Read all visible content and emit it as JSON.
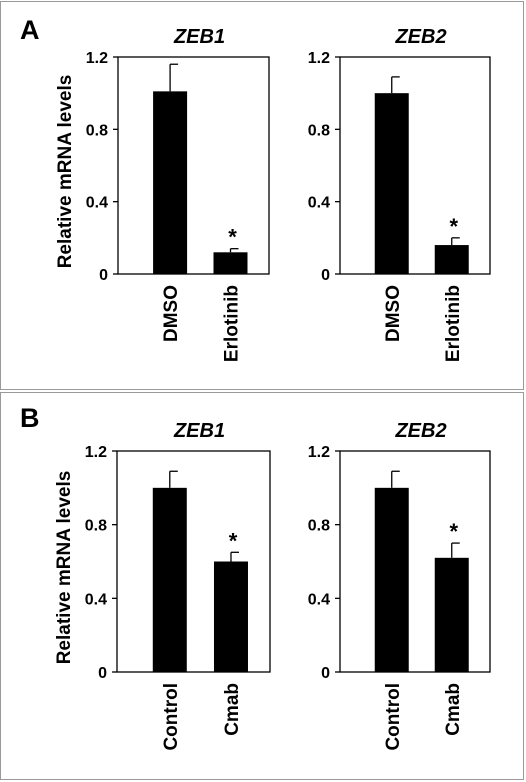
{
  "panels": {
    "a": {
      "letter": "A"
    },
    "b": {
      "letter": "B"
    }
  },
  "chart_data": [
    {
      "type": "bar",
      "panel": "A",
      "title": "ZEB1",
      "ylabel": "Relative mRNA levels",
      "categories": [
        "DMSO",
        "Erlotinib"
      ],
      "values": [
        1.01,
        0.12
      ],
      "errors": [
        0.15,
        0.02
      ],
      "significance": [
        "",
        "*"
      ],
      "ylim": [
        0,
        1.2
      ],
      "yticks": [
        "0",
        "0.4",
        "0.8",
        "1.2"
      ],
      "bar_color": "#000000"
    },
    {
      "type": "bar",
      "panel": "A",
      "title": "ZEB2",
      "ylabel": "",
      "categories": [
        "DMSO",
        "Erlotinib"
      ],
      "values": [
        1.0,
        0.16
      ],
      "errors": [
        0.09,
        0.04
      ],
      "significance": [
        "",
        "*"
      ],
      "ylim": [
        0,
        1.2
      ],
      "yticks": [
        "0",
        "0.4",
        "0.8",
        "1.2"
      ],
      "bar_color": "#000000"
    },
    {
      "type": "bar",
      "panel": "B",
      "title": "ZEB1",
      "ylabel": "Relative mRNA levels",
      "categories": [
        "Control",
        "Cmab"
      ],
      "values": [
        1.0,
        0.6
      ],
      "errors": [
        0.09,
        0.05
      ],
      "significance": [
        "",
        "*"
      ],
      "ylim": [
        0,
        1.2
      ],
      "yticks": [
        "0",
        "0.4",
        "0.8",
        "1.2"
      ],
      "bar_color": "#000000"
    },
    {
      "type": "bar",
      "panel": "B",
      "title": "ZEB2",
      "ylabel": "",
      "categories": [
        "Control",
        "Cmab"
      ],
      "values": [
        1.0,
        0.62
      ],
      "errors": [
        0.09,
        0.08
      ],
      "significance": [
        "",
        "*"
      ],
      "ylim": [
        0,
        1.2
      ],
      "yticks": [
        "0",
        "0.4",
        "0.8",
        "1.2"
      ],
      "bar_color": "#000000"
    }
  ]
}
